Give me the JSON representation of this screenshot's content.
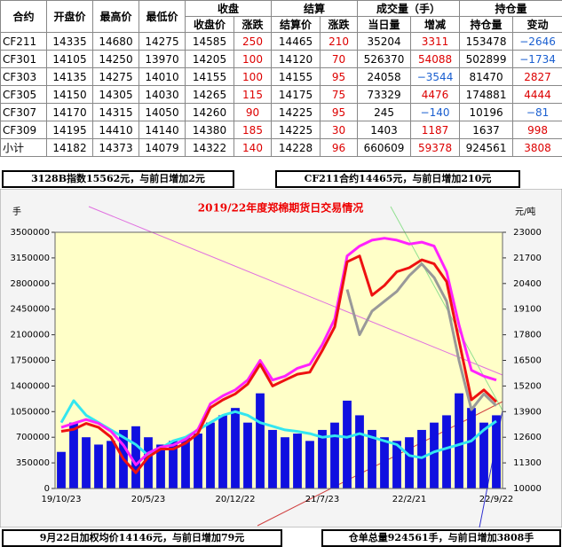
{
  "table": {
    "group_headers": [
      "合约",
      "开盘价",
      "最高价",
      "最低价",
      "收盘",
      "结算",
      "成交量（手）",
      "持仓量"
    ],
    "headers": [
      "收盘价",
      "涨跌",
      "结算价",
      "涨跌",
      "当日量",
      "增减",
      "持仓量",
      "变动"
    ],
    "rows": [
      [
        "CF211",
        "14335",
        "14680",
        "14275",
        "14585",
        "250",
        "14465",
        "210",
        "35204",
        "3311",
        "153478",
        "−2646"
      ],
      [
        "CF301",
        "14105",
        "14250",
        "13970",
        "14205",
        "100",
        "14120",
        "70",
        "526370",
        "54088",
        "502899",
        "−1734"
      ],
      [
        "CF303",
        "14135",
        "14275",
        "14010",
        "14155",
        "100",
        "14155",
        "95",
        "24058",
        "−3544",
        "81470",
        "2827"
      ],
      [
        "CF305",
        "14150",
        "14305",
        "14030",
        "14265",
        "115",
        "14175",
        "75",
        "73329",
        "4476",
        "174881",
        "4444"
      ],
      [
        "CF307",
        "14170",
        "14315",
        "14050",
        "14260",
        "90",
        "14225",
        "95",
        "245",
        "−140",
        "10196",
        "−81"
      ],
      [
        "CF309",
        "14195",
        "14410",
        "14140",
        "14380",
        "185",
        "14225",
        "30",
        "1403",
        "1187",
        "1637",
        "998"
      ],
      [
        "小计",
        "14182",
        "14373",
        "14079",
        "14322",
        "140",
        "14228",
        "96",
        "660609",
        "59378",
        "924561",
        "3808"
      ]
    ]
  },
  "info": {
    "index": "3128B指数15562元，与前日增加2元",
    "contract": "CF211合约14465元，与前日增加210元",
    "weighted": "9月22日加权均价14146元，与前日增加79元",
    "warrant": "仓单总量924561手，与前日增加3808手"
  },
  "chart_data": {
    "type": "bar",
    "title": "2019/22年度郑棉期货日交易情况",
    "ylabel": "手",
    "y2label": "元/吨",
    "categories": [
      "19/10/23",
      null,
      null,
      null,
      null,
      null,
      null,
      "20/5/23",
      null,
      null,
      null,
      null,
      null,
      null,
      "20/12/22",
      null,
      null,
      null,
      null,
      null,
      null,
      "21/7/23",
      null,
      null,
      null,
      null,
      null,
      null,
      "22/2/21",
      null,
      null,
      null,
      null,
      null,
      null,
      "22/9/22"
    ],
    "ylim": [
      0,
      3500000
    ],
    "yticks": [
      0,
      350000,
      700000,
      1050000,
      1400000,
      1750000,
      2100000,
      2450000,
      2800000,
      3150000,
      3500000
    ],
    "y2lim": [
      10000,
      23000
    ],
    "y2ticks": [
      10000,
      11300,
      12600,
      13900,
      15200,
      16500,
      17800,
      19100,
      20400,
      21700,
      23000
    ],
    "series": [
      {
        "type": "bar",
        "color": "#1010e0",
        "values": [
          500000,
          900000,
          700000,
          600000,
          650000,
          800000,
          850000,
          700000,
          600000,
          650000,
          700000,
          750000,
          900000,
          1000000,
          1100000,
          900000,
          1300000,
          800000,
          700000,
          750000,
          650000,
          800000,
          900000,
          1200000,
          1000000,
          800000,
          700000,
          650000,
          700000,
          800000,
          900000,
          1000000,
          1300000,
          1100000,
          900000,
          1000000
        ]
      },
      {
        "type": "line",
        "color": "#33e6f0",
        "values": [
          900000,
          1200000,
          1000000,
          900000,
          800000,
          700000,
          600000,
          450000,
          550000,
          650000,
          700000,
          800000,
          900000,
          1000000,
          1050000,
          1000000,
          900000,
          850000,
          800000,
          780000,
          750000,
          700000,
          720000,
          700000,
          750000,
          700000,
          650000,
          600000,
          450000,
          420000,
          500000,
          550000,
          600000,
          650000,
          800000,
          920000
        ]
      },
      {
        "type": "line",
        "axis": "y2",
        "color": "#ff22ff",
        "values": [
          13100,
          13300,
          13500,
          13300,
          12900,
          12200,
          11200,
          11800,
          12100,
          12200,
          12500,
          13000,
          14300,
          14700,
          15000,
          15500,
          16500,
          15500,
          15700,
          16100,
          16300,
          17300,
          18600,
          21800,
          22300,
          22600,
          22700,
          22600,
          22400,
          22500,
          22300,
          21000,
          18300,
          16000,
          15700,
          15500
        ]
      },
      {
        "type": "line",
        "axis": "y2",
        "color": "#999999",
        "values": [
          null,
          null,
          null,
          null,
          null,
          null,
          null,
          null,
          null,
          null,
          null,
          null,
          null,
          null,
          null,
          null,
          null,
          null,
          null,
          null,
          null,
          null,
          null,
          20100,
          17800,
          19000,
          19500,
          20000,
          20800,
          21400,
          20700,
          19500,
          16500,
          14000,
          14800,
          14200
        ]
      },
      {
        "type": "line",
        "axis": "y2",
        "color": "#ee1111",
        "values": [
          12900,
          13000,
          13300,
          13100,
          12600,
          11500,
          10800,
          11600,
          12000,
          12000,
          12300,
          12800,
          14100,
          14500,
          14800,
          15300,
          16300,
          15200,
          15500,
          15800,
          15900,
          17000,
          18200,
          21500,
          21800,
          19800,
          20300,
          21000,
          21200,
          21600,
          21400,
          20500,
          17500,
          14500,
          15000,
          14400
        ]
      }
    ]
  }
}
